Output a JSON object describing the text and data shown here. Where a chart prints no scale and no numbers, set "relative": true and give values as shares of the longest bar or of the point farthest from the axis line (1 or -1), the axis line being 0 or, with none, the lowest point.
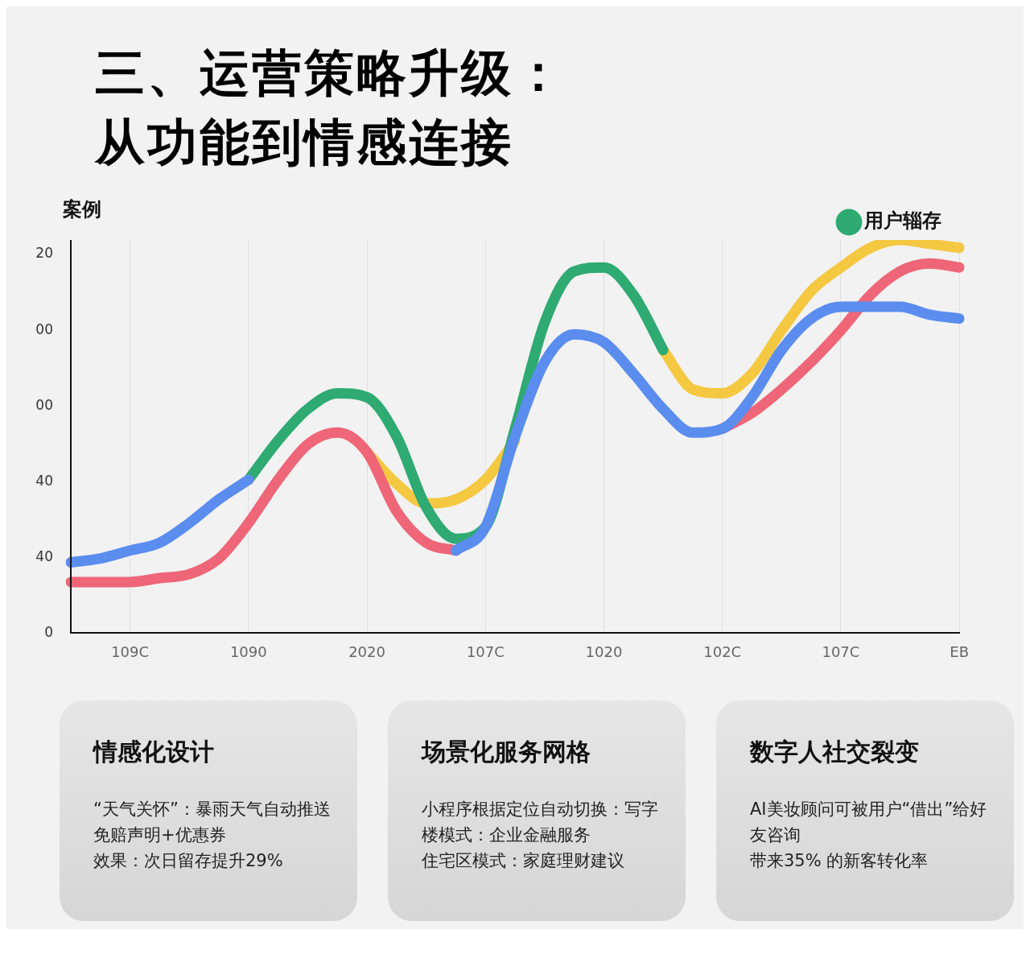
{
  "chart_data": [
    {
      "type": "line",
      "title": "三、运营策略升级：从功能到情感连接",
      "ylabel": "案例",
      "legend": "top right",
      "grid": "x",
      "marker": "none",
      "relative": true,
      "annotations": [
        "0",
        "40",
        "40",
        "00",
        "00",
        "20"
      ],
      "categories": [
        null,
        null,
        "109C",
        null,
        null,
        null,
        "1090",
        null,
        null,
        null,
        "2020",
        null,
        null,
        null,
        "107C",
        null,
        null,
        null,
        "1020",
        null,
        null,
        null,
        "102C",
        null,
        null,
        null,
        "107C",
        null,
        null,
        null,
        "EB"
      ],
      "series": [
        {
          "color": "#5b8def",
          "values": [
            0.18,
            0.19,
            0.21,
            0.23,
            0.28,
            0.34,
            0.39,
            null,
            null,
            null,
            null,
            null,
            null,
            0.21,
            0.27,
            0.5,
            0.69,
            0.76,
            0.74,
            0.66,
            0.57,
            0.51,
            0.52,
            0.6,
            0.72,
            0.8,
            0.83,
            0.83,
            0.83,
            0.81,
            0.8
          ]
        },
        {
          "color": "#ee6677",
          "values": [
            0.13,
            0.13,
            0.13,
            0.14,
            0.15,
            0.19,
            0.28,
            0.39,
            0.48,
            0.51,
            0.46,
            0.31,
            0.23,
            0.21,
            null,
            null,
            null,
            null,
            null,
            null,
            null,
            null,
            0.52,
            0.56,
            0.62,
            0.69,
            0.77,
            0.86,
            0.92,
            0.94,
            0.93
          ]
        },
        {
          "name": "用户辎存",
          "color": "#2eaa72",
          "values": [
            null,
            null,
            null,
            null,
            null,
            null,
            0.39,
            0.49,
            0.57,
            0.61,
            0.6,
            0.5,
            0.32,
            0.24,
            0.27,
            0.52,
            0.79,
            0.92,
            0.93,
            0.86,
            0.72,
            null,
            null,
            null,
            null,
            null,
            null,
            null,
            null,
            null,
            null
          ]
        },
        {
          "color": "#f5c842",
          "values": [
            null,
            null,
            null,
            null,
            null,
            null,
            null,
            null,
            null,
            null,
            0.46,
            0.38,
            0.33,
            0.34,
            0.39,
            0.49,
            null,
            null,
            null,
            null,
            0.72,
            0.62,
            0.61,
            0.66,
            0.77,
            0.87,
            0.93,
            0.98,
            1,
            0.99,
            0.98
          ]
        }
      ]
    },
    {
      "type": "other",
      "title": "情感化设计",
      "annotations": [
        "“天气关怀”：暴雨天气自动推送免赔声明+优惠券",
        "效果：次日留存提升29%"
      ]
    },
    {
      "type": "other",
      "title": "场景化服务网格",
      "annotations": [
        "小程序根据定位自动切换：写字楼模式：企业金融服务",
        "住宅区模式：家庭理财建议"
      ]
    },
    {
      "type": "other",
      "title": "数字人社交裂变",
      "annotations": [
        "AI美妆顾问可被用户“借出”给好友咨询",
        "带来35% 的新客转化率"
      ]
    }
  ]
}
